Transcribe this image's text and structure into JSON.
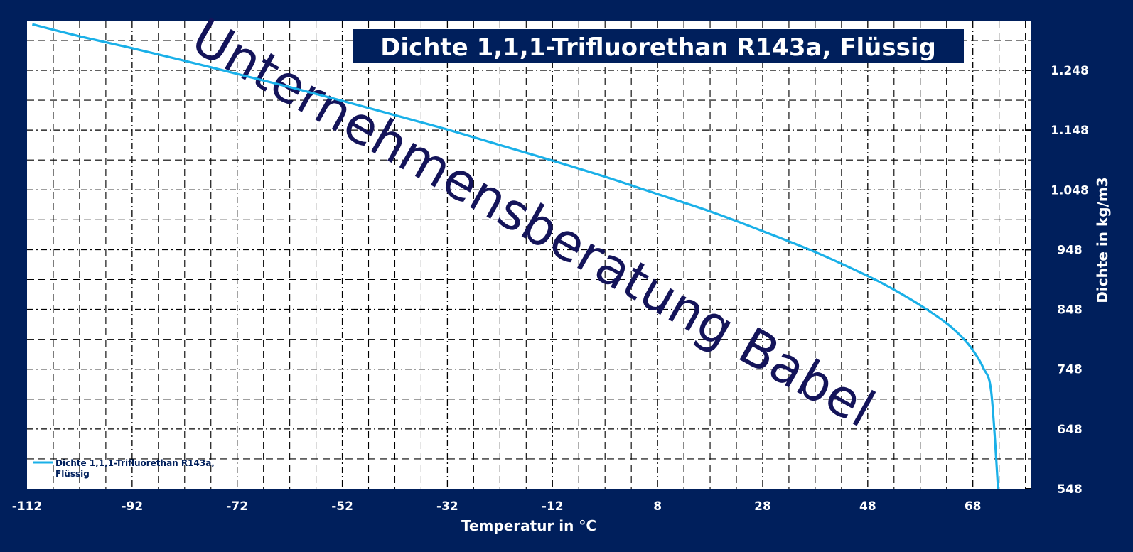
{
  "chart_data": {
    "type": "line",
    "title": "Dichte 1,1,1-Trifluorethan R143a, Flüssig",
    "xlabel": "Temperatur in °C",
    "ylabel": "Dichte in kg/m3",
    "xlim": [
      -112,
      79
    ],
    "ylim": [
      548,
      1330
    ],
    "x_ticks": [
      -112,
      -92,
      -72,
      -52,
      -32,
      -12,
      8,
      28,
      48,
      68
    ],
    "x_tick_labels": [
      "-112",
      "-92",
      "-72",
      "-52",
      "-32",
      "-12",
      "8",
      "28",
      "48",
      "68"
    ],
    "y_ticks": [
      548,
      648,
      748,
      848,
      948,
      1048,
      1148,
      1248
    ],
    "y_tick_labels": [
      "548",
      "648",
      "748",
      "848",
      "948",
      "1.048",
      "1.148",
      "1.248"
    ],
    "grid": true,
    "legend_position": "bottom-left",
    "series": [
      {
        "name": "Dichte 1,1,1-Trifluorethan R143a, Flüssig",
        "color": "#1ab0e8",
        "x": [
          -111,
          -102,
          -92,
          -82,
          -72,
          -62,
          -52,
          -42,
          -32,
          -22,
          -12,
          -2,
          8,
          18,
          28,
          38,
          48,
          53,
          58,
          63,
          66,
          68,
          70,
          71.5,
          72.8
        ],
        "y": [
          1325,
          1305,
          1285,
          1264,
          1242,
          1220,
          1197,
          1173,
          1149,
          1123,
          1097,
          1070,
          1041,
          1012,
          979,
          944,
          904,
          881,
          855,
          825,
          801,
          780,
          750,
          710,
          548
        ]
      }
    ]
  },
  "legend": {
    "line1": "Dichte 1,1,1-Trifluorethan R143a,",
    "line2": "Flüssig"
  },
  "watermark": "Unternehmensberatung Babel",
  "colors": {
    "background": "#001f5c",
    "plot_area": "#ffffff",
    "grid": "#000000",
    "series": "#1ab0e8",
    "title_box": "#001f5c",
    "watermark": "#14145a"
  }
}
